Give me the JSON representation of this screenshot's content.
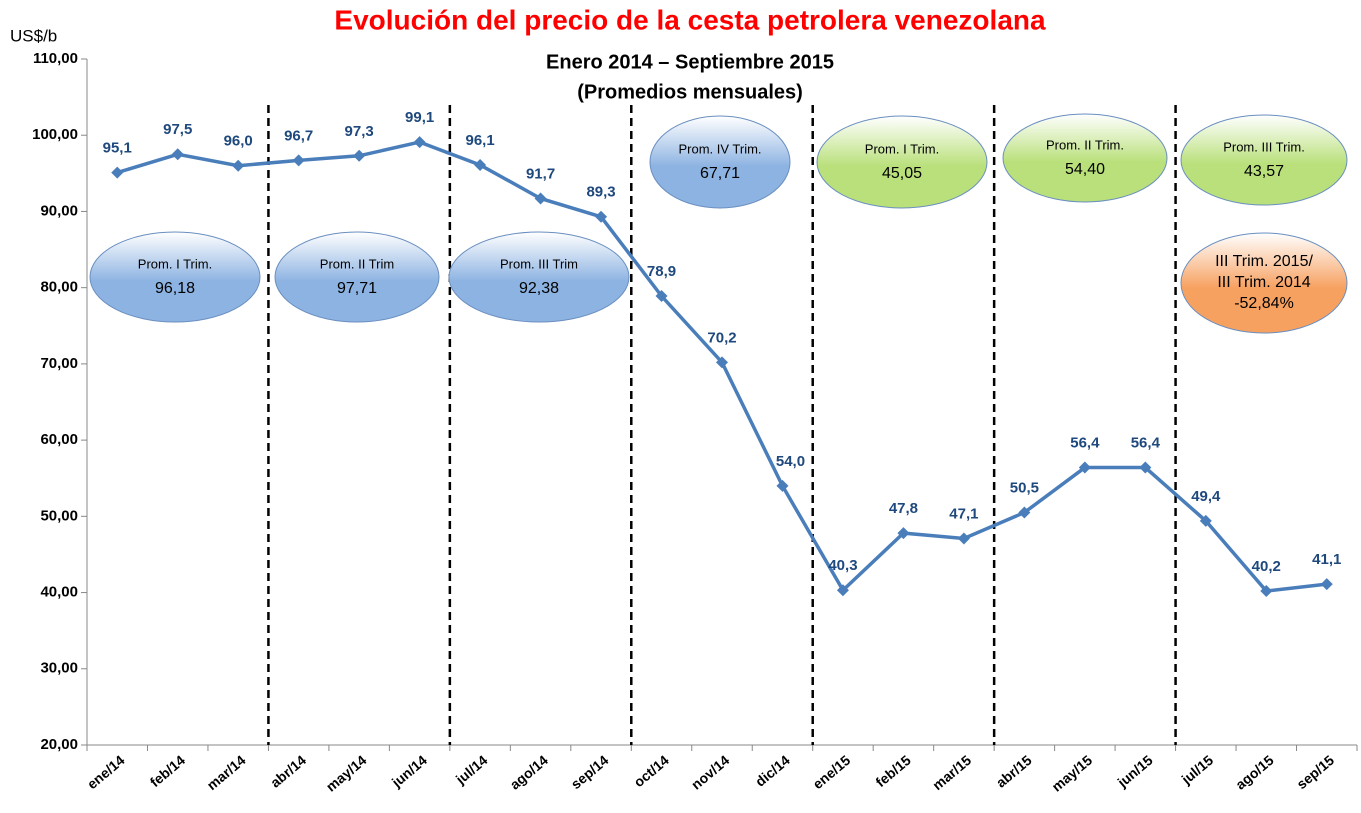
{
  "chart_data": {
    "type": "line",
    "title": "Evolución del precio de la cesta petrolera venezolana",
    "subtitle": [
      "Enero 2014 – Septiembre 2015",
      "(Promedios mensuales)"
    ],
    "y_axis_label": "US$/b",
    "categories": [
      "ene/14",
      "feb/14",
      "mar/14",
      "abr/14",
      "may/14",
      "jun/14",
      "jul/14",
      "ago/14",
      "sep/14",
      "oct/14",
      "nov/14",
      "dic/14",
      "ene/15",
      "feb/15",
      "mar/15",
      "abr/15",
      "may/15",
      "jun/15",
      "jul/15",
      "ago/15",
      "sep/15"
    ],
    "series": [
      {
        "color": "#4a7ebb",
        "values": [
          95.1,
          97.5,
          96.0,
          96.7,
          97.3,
          99.1,
          96.1,
          91.7,
          89.3,
          78.9,
          70.2,
          54.0,
          40.3,
          47.8,
          47.1,
          50.5,
          56.4,
          56.4,
          49.4,
          40.2,
          41.1
        ],
        "value_labels": [
          "95,1",
          "97,5",
          "96,0",
          "96,7",
          "97,3",
          "99,1",
          "96,1",
          "91,7",
          "89,3",
          "78,9",
          "70,2",
          "54,0",
          "40,3",
          "47,8",
          "47,1",
          "50,5",
          "56,4",
          "56,4",
          "49,4",
          "40,2",
          "41,1"
        ]
      }
    ],
    "ylim": [
      20,
      110
    ],
    "yticks": [
      {
        "value": 20,
        "label": "20,00"
      },
      {
        "value": 30,
        "label": "30,00"
      },
      {
        "value": 40,
        "label": "40,00"
      },
      {
        "value": 50,
        "label": "50,00"
      },
      {
        "value": 60,
        "label": "60,00"
      },
      {
        "value": 70,
        "label": "70,00"
      },
      {
        "value": 80,
        "label": "80,00"
      },
      {
        "value": 90,
        "label": "90,00"
      },
      {
        "value": 100,
        "label": "100,00"
      },
      {
        "value": 110,
        "label": "110,00"
      }
    ],
    "annotations": [
      {
        "lines": [
          "Prom. I Trim.",
          "96,18"
        ],
        "color": "#8db3e2"
      },
      {
        "lines": [
          "Prom. II Trim",
          "97,71"
        ],
        "color": "#8db3e2"
      },
      {
        "lines": [
          "Prom. III Trim",
          "92,38"
        ],
        "color": "#8db3e2"
      },
      {
        "lines": [
          "Prom. IV Trim.",
          "67,71"
        ],
        "color": "#8db3e2"
      },
      {
        "lines": [
          "Prom. I Trim.",
          "45,05"
        ],
        "color": "#b9e07a"
      },
      {
        "lines": [
          "Prom. II Trim.",
          "54,40"
        ],
        "color": "#b9e07a"
      },
      {
        "lines": [
          "Prom. III Trim.",
          "43,57"
        ],
        "color": "#b9e07a"
      },
      {
        "lines": [
          "III Trim. 2015/",
          "III Trim. 2014",
          "-52,84%"
        ],
        "color": "#f7a161"
      }
    ]
  }
}
